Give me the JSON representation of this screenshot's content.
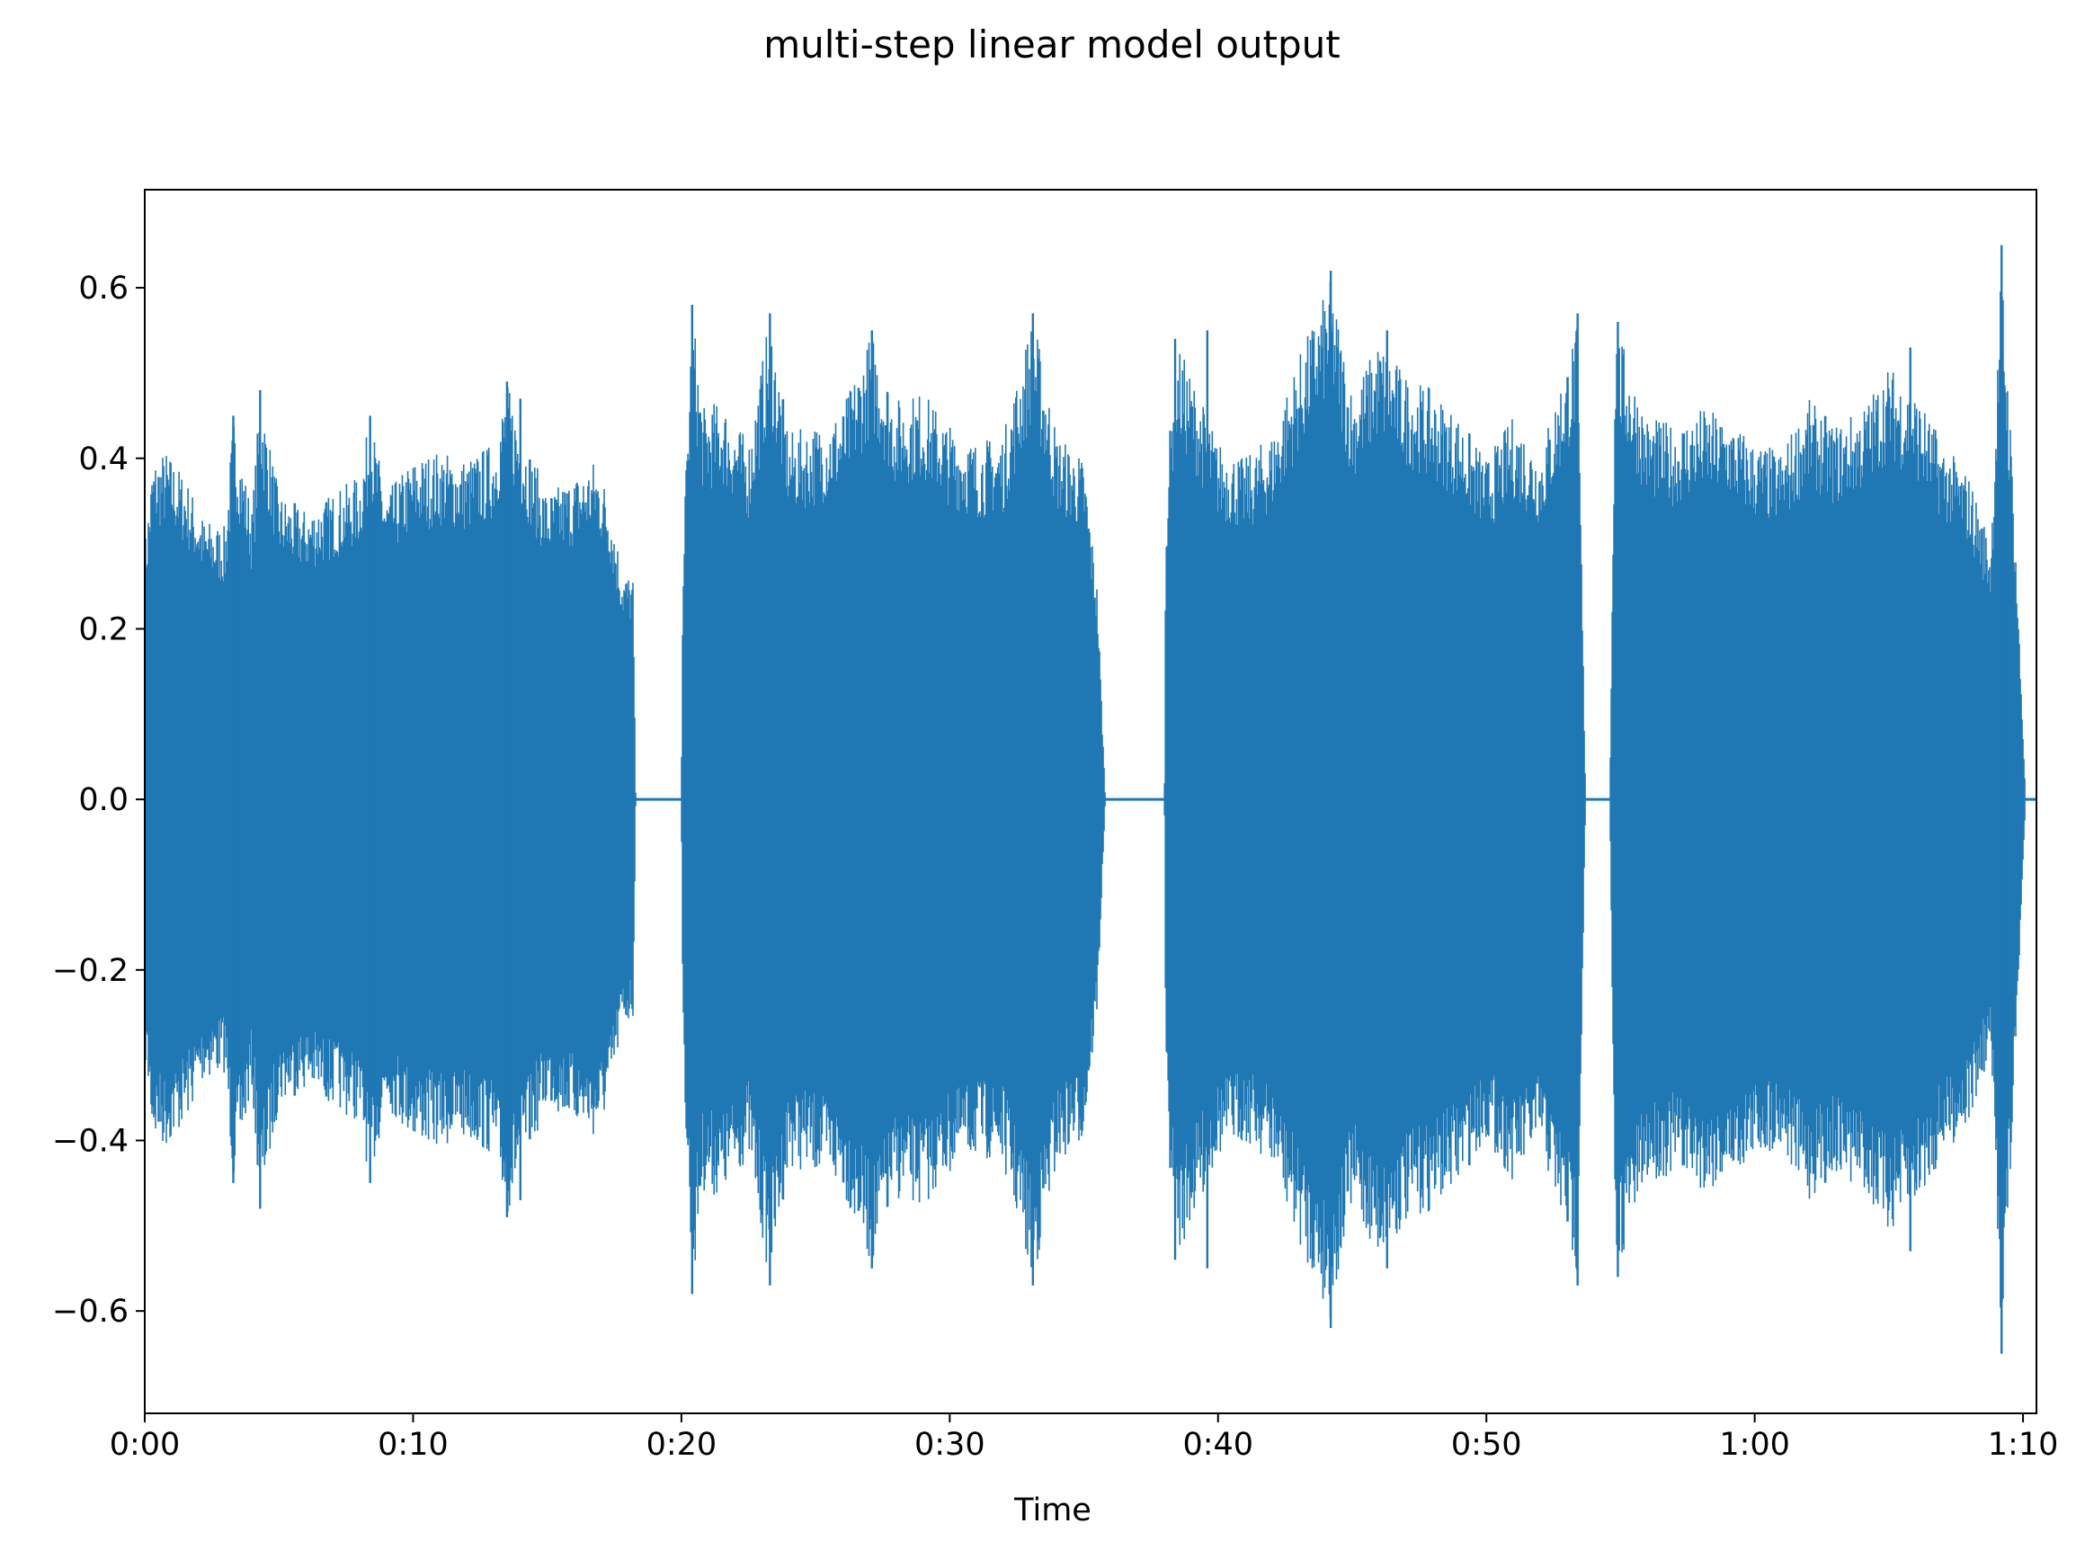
{
  "chart_data": {
    "type": "line",
    "title": "multi-step linear model output",
    "xlabel": "Time",
    "ylabel": "",
    "xlim_seconds": [
      0,
      70.5
    ],
    "ylim": [
      -0.72,
      0.715
    ],
    "x_ticks": [
      {
        "value": 0,
        "label": "0:00"
      },
      {
        "value": 10,
        "label": "0:10"
      },
      {
        "value": 20,
        "label": "0:20"
      },
      {
        "value": 30,
        "label": "0:30"
      },
      {
        "value": 40,
        "label": "0:40"
      },
      {
        "value": 50,
        "label": "0:50"
      },
      {
        "value": 60,
        "label": "1:00"
      },
      {
        "value": 70,
        "label": "1:10"
      }
    ],
    "y_ticks": [
      {
        "value": 0.6,
        "label": "0.6"
      },
      {
        "value": 0.4,
        "label": "0.4"
      },
      {
        "value": 0.2,
        "label": "0.2"
      },
      {
        "value": 0.0,
        "label": "0.0"
      },
      {
        "value": -0.2,
        "label": "−0.2"
      },
      {
        "value": -0.4,
        "label": "−0.4"
      },
      {
        "value": -0.6,
        "label": "−0.6"
      }
    ],
    "grid": false,
    "series": [
      {
        "color": "#1f77b4",
        "envelope": [
          [
            0.0,
            0.3
          ],
          [
            0.3,
            0.4
          ],
          [
            0.8,
            0.41
          ],
          [
            1.5,
            0.38
          ],
          [
            2.2,
            0.33
          ],
          [
            3.0,
            0.32
          ],
          [
            3.3,
            0.45
          ],
          [
            4.0,
            0.34
          ],
          [
            4.3,
            0.48
          ],
          [
            5.0,
            0.36
          ],
          [
            6.0,
            0.34
          ],
          [
            7.0,
            0.36
          ],
          [
            8.0,
            0.38
          ],
          [
            8.4,
            0.45
          ],
          [
            9.0,
            0.36
          ],
          [
            10.0,
            0.4
          ],
          [
            11.0,
            0.41
          ],
          [
            12.0,
            0.4
          ],
          [
            13.0,
            0.42
          ],
          [
            13.5,
            0.49
          ],
          [
            14.0,
            0.44
          ],
          [
            15.0,
            0.36
          ],
          [
            16.0,
            0.38
          ],
          [
            16.8,
            0.4
          ],
          [
            17.3,
            0.36
          ],
          [
            17.8,
            0.27
          ],
          [
            18.2,
            0.26
          ],
          [
            18.3,
            0.0
          ],
          [
            20.0,
            0.0
          ],
          [
            20.05,
            0.29
          ],
          [
            20.4,
            0.58
          ],
          [
            20.8,
            0.46
          ],
          [
            21.5,
            0.47
          ],
          [
            22.5,
            0.42
          ],
          [
            23.3,
            0.57
          ],
          [
            24.0,
            0.43
          ],
          [
            25.0,
            0.44
          ],
          [
            26.0,
            0.46
          ],
          [
            27.1,
            0.55
          ],
          [
            28.0,
            0.47
          ],
          [
            29.0,
            0.48
          ],
          [
            30.0,
            0.44
          ],
          [
            31.0,
            0.42
          ],
          [
            32.0,
            0.43
          ],
          [
            33.1,
            0.57
          ],
          [
            34.0,
            0.43
          ],
          [
            35.0,
            0.4
          ],
          [
            35.5,
            0.25
          ],
          [
            35.8,
            0.0
          ],
          [
            38.0,
            0.0
          ],
          [
            38.05,
            0.35
          ],
          [
            38.4,
            0.54
          ],
          [
            39.0,
            0.5
          ],
          [
            40.0,
            0.42
          ],
          [
            41.0,
            0.4
          ],
          [
            42.0,
            0.43
          ],
          [
            43.0,
            0.52
          ],
          [
            44.2,
            0.61
          ],
          [
            45.0,
            0.48
          ],
          [
            46.0,
            0.54
          ],
          [
            47.0,
            0.5
          ],
          [
            48.0,
            0.48
          ],
          [
            49.0,
            0.45
          ],
          [
            50.0,
            0.4
          ],
          [
            51.0,
            0.45
          ],
          [
            52.0,
            0.41
          ],
          [
            53.4,
            0.56
          ],
          [
            53.7,
            0.0
          ],
          [
            54.6,
            0.0
          ],
          [
            54.8,
            0.56
          ],
          [
            56.0,
            0.45
          ],
          [
            57.0,
            0.44
          ],
          [
            58.0,
            0.46
          ],
          [
            59.0,
            0.45
          ],
          [
            60.0,
            0.42
          ],
          [
            61.0,
            0.41
          ],
          [
            62.0,
            0.47
          ],
          [
            63.0,
            0.44
          ],
          [
            64.0,
            0.46
          ],
          [
            65.0,
            0.51
          ],
          [
            66.0,
            0.48
          ],
          [
            67.0,
            0.42
          ],
          [
            68.0,
            0.38
          ],
          [
            68.8,
            0.3
          ],
          [
            69.2,
            0.64
          ],
          [
            69.6,
            0.4
          ],
          [
            70.0,
            0.08
          ],
          [
            70.1,
            0.0
          ],
          [
            70.5,
            0.0
          ]
        ],
        "spikes": [
          [
            3.3,
            0.45
          ],
          [
            4.3,
            0.48
          ],
          [
            8.4,
            0.45
          ],
          [
            13.5,
            0.49
          ],
          [
            14.0,
            0.47
          ],
          [
            20.4,
            0.58
          ],
          [
            23.3,
            0.57
          ],
          [
            27.1,
            0.55
          ],
          [
            33.1,
            0.57
          ],
          [
            38.4,
            0.54
          ],
          [
            39.6,
            0.55
          ],
          [
            44.2,
            0.62
          ],
          [
            46.3,
            0.55
          ],
          [
            53.4,
            0.57
          ],
          [
            54.9,
            0.56
          ],
          [
            65.8,
            0.53
          ],
          [
            69.2,
            0.65
          ]
        ]
      }
    ]
  }
}
